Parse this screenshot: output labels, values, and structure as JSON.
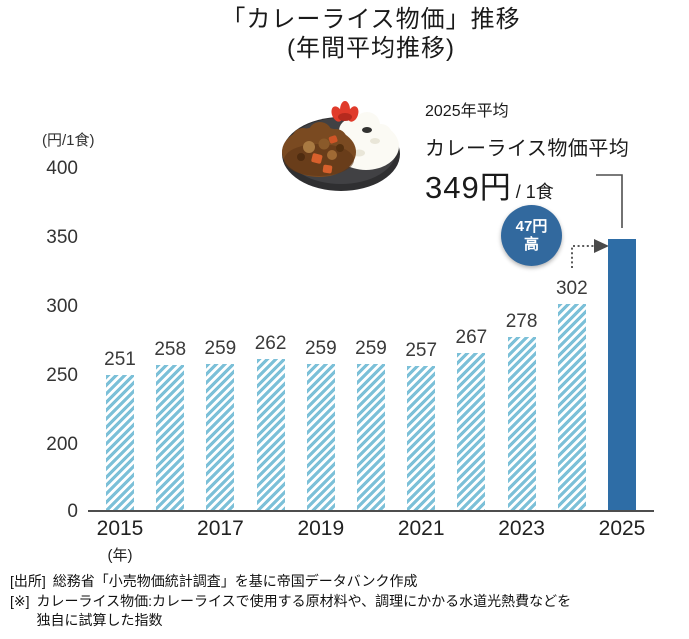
{
  "title": {
    "line1": "「カレーライス物価」推移",
    "line2": "(年間平均推移)"
  },
  "callout": {
    "period_label": "2025年平均",
    "metric_label": "カレーライス物価平均",
    "value": "349円",
    "unit": "/ 1食"
  },
  "badge": {
    "line1": "47円",
    "line2": "高"
  },
  "chart_data": {
    "type": "bar",
    "title": "「カレーライス物価」推移(年間平均推移)",
    "ylabel": "(円/1食)",
    "xlabel": "(年)",
    "categories": [
      "2015",
      "2016",
      "2017",
      "2018",
      "2019",
      "2020",
      "2021",
      "2022",
      "2023",
      "2024",
      "2025"
    ],
    "values": [
      251,
      258,
      259,
      262,
      259,
      259,
      257,
      267,
      278,
      302,
      349
    ],
    "x_tick_labels": [
      "2015",
      "2017",
      "2019",
      "2021",
      "2023",
      "2025"
    ],
    "y_ticks": [
      0,
      200,
      250,
      300,
      350,
      400
    ],
    "ylim": [
      0,
      400
    ],
    "axis_break_between": [
      0,
      200
    ],
    "grid": false,
    "legend": false,
    "highlight_category": "2025",
    "bar_style": "diagonal-hatch",
    "highlight_bar_style": "solid"
  },
  "colors": {
    "hatch_bar": "#7cc0d8",
    "hatch_gap": "#ffffff",
    "highlight_bar": "#2e6da6",
    "badge": "#32699e",
    "connector": "#4f4f4f",
    "axis": "#4d4d4d"
  },
  "notes": {
    "source_label": "[出所]",
    "source_text": "総務省「小売物価統計調査」を基に帝国データバンク作成",
    "remark_label": "[※]",
    "remark_line1": "カレーライス物価:カレーライスで使用する原材料や、調理にかかる水道光熱費などを",
    "remark_line2": "独自に試算した指数"
  }
}
